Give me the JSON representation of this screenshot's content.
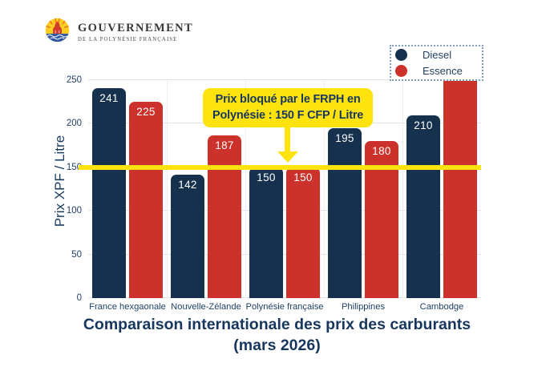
{
  "logo": {
    "title": "GOUVERNEMENT",
    "subtitle": "DE LA POLYNÉSIE FRANÇAISE",
    "emblem": "polynesia-coat-of-arms"
  },
  "annotation": {
    "line1": "Prix bloqué par le FRPH en",
    "line2": "Polynésie : 150 F CFP / Litre"
  },
  "title": {
    "line1": "Comparaison internationale des prix des carburants",
    "line2": "(mars 2026)"
  },
  "colors": {
    "diesel_navy": "#15314D",
    "essence_red": "#CC322B",
    "highlight_yellow": "#FFE30E",
    "text_navy": "#17375E",
    "gridline_gray": "#DDE3E9",
    "legend_border_blue": "#7E9EC2"
  },
  "chart_data": {
    "type": "bar",
    "title": "Comparaison internationale des prix des carburants (mars 2026)",
    "categories": [
      "France hexgaonale",
      "Nouvelle-Zélande",
      "Polynésie française",
      "Philippines",
      "Cambodge"
    ],
    "series": [
      {
        "name": "Diesel",
        "color": "#15314D",
        "values": [
          241,
          142,
          150,
          195,
          210
        ],
        "value_labels": [
          "241",
          "142",
          "150",
          "195",
          "210"
        ],
        "clipped": [
          false,
          false,
          false,
          false,
          false
        ]
      },
      {
        "name": "Essence",
        "color": "#CC322B",
        "values": [
          225,
          187,
          150,
          180,
          250
        ],
        "value_labels": [
          "225",
          "187",
          "150",
          "180",
          ""
        ],
        "clipped": [
          false,
          false,
          false,
          false,
          true
        ]
      }
    ],
    "ylabel": "Prix XPF / Litre",
    "xlabel": "",
    "ylim": [
      0,
      250
    ],
    "yticks": [
      0,
      50,
      100,
      150,
      200,
      250
    ],
    "grid": "horizontal",
    "legend_position": "top-right",
    "reference_line": {
      "value": 150,
      "color": "#FFE30E",
      "label": "Prix bloqué par le FRPH en Polynésie : 150 F CFP / Litre"
    },
    "note": "Cambodge Essence bar is clipped at the axis maximum (>=250); no value label is shown for it"
  }
}
